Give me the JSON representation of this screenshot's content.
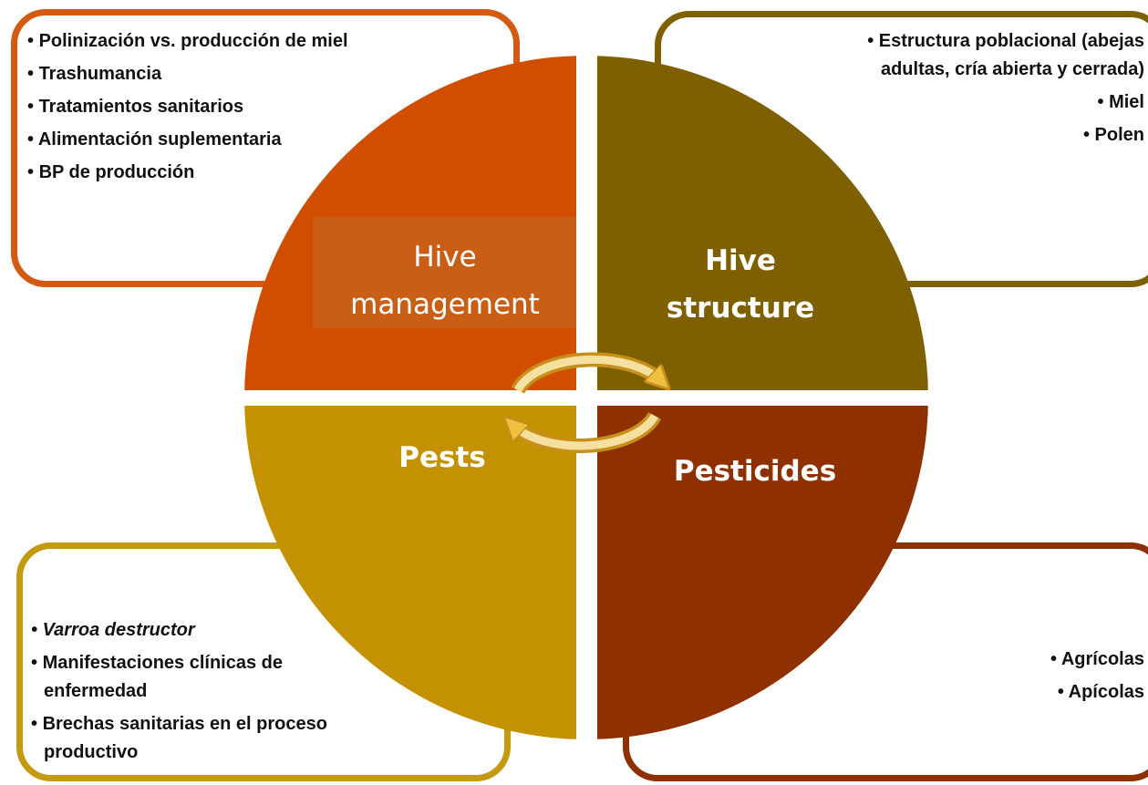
{
  "boxes": [
    {
      "label": "Hive management",
      "items": [
        "Polinización vs. producción de miel",
        "Trashumancia",
        "Tratamientos sanitarios",
        "Alimentación suplementaria",
        "BP de producción"
      ]
    },
    {
      "label": "Hive structure",
      "items": [
        "Estructura poblacional (abejas adultas, cría abierta y cerrada)",
        "Miel",
        "Polen"
      ]
    },
    {
      "label": "Pests",
      "items": [
        "Varroa destructor",
        "Manifestaciones clínicas de enfermedad",
        "Brechas sanitarias  en el proceso productivo"
      ]
    },
    {
      "label": "Pesticides",
      "items": [
        "Agrícolas",
        "Apícolas"
      ]
    }
  ]
}
